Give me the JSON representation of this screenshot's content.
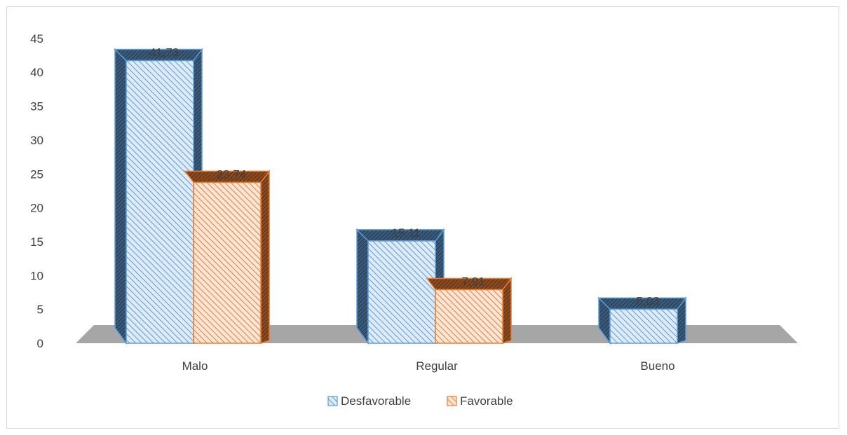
{
  "chart_data": {
    "type": "bar",
    "style": "3d-clustered-column",
    "categories": [
      "Malo",
      "Regular",
      "Bueno"
    ],
    "series": [
      {
        "name": "Desfavorable",
        "values": [
          41.73,
          15.11,
          5.03
        ],
        "labels": [
          "41,73",
          "15,11",
          "5,03"
        ],
        "color": "#5b9bd5"
      },
      {
        "name": "Favorable",
        "values": [
          23.74,
          7.91,
          null
        ],
        "labels": [
          "23,74",
          "7,91",
          ""
        ],
        "color": "#ed7d31"
      }
    ],
    "y_ticks": [
      "0",
      "5",
      "10",
      "15",
      "20",
      "25",
      "30",
      "35",
      "40",
      "45"
    ],
    "ylim": [
      0,
      45
    ],
    "grid": false,
    "legend_position": "bottom",
    "floor_color": "#a6a6a6"
  }
}
